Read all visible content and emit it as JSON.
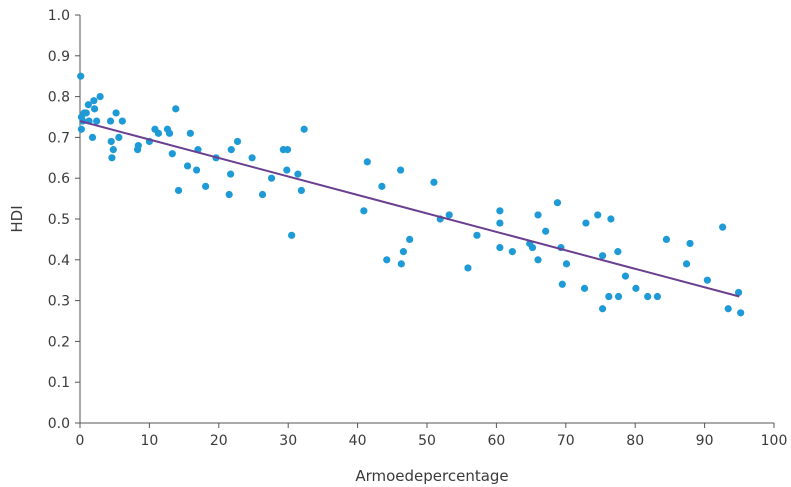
{
  "chart_data": {
    "type": "scatter",
    "xlabel": "Armoedepercentage",
    "ylabel": "HDI",
    "xlim": [
      0,
      100
    ],
    "ylim": [
      0.0,
      1.0
    ],
    "x_ticks": [
      "0",
      "10",
      "20",
      "30",
      "40",
      "50",
      "60",
      "70",
      "80",
      "90",
      "100"
    ],
    "y_ticks": [
      "0.0",
      "0.1",
      "0.2",
      "0.3",
      "0.4",
      "0.5",
      "0.6",
      "0.7",
      "0.8",
      "0.9",
      "1.0"
    ],
    "grid": false,
    "legend": "none",
    "point_color": "#1e9ad6",
    "trend_color": "#6a3f8f",
    "trendline": {
      "x": [
        0,
        95
      ],
      "y": [
        0.74,
        0.31
      ]
    },
    "series": [
      {
        "points": [
          [
            0.1,
            0.85
          ],
          [
            0.2,
            0.72
          ],
          [
            0.2,
            0.75
          ],
          [
            0.4,
            0.74
          ],
          [
            0.6,
            0.76
          ],
          [
            0.9,
            0.76
          ],
          [
            1.2,
            0.78
          ],
          [
            1.3,
            0.74
          ],
          [
            1.8,
            0.7
          ],
          [
            2.0,
            0.79
          ],
          [
            2.1,
            0.77
          ],
          [
            2.4,
            0.74
          ],
          [
            2.9,
            0.8
          ],
          [
            4.4,
            0.74
          ],
          [
            4.5,
            0.69
          ],
          [
            4.6,
            0.65
          ],
          [
            4.8,
            0.67
          ],
          [
            5.2,
            0.76
          ],
          [
            5.6,
            0.7
          ],
          [
            6.1,
            0.74
          ],
          [
            8.3,
            0.67
          ],
          [
            8.4,
            0.68
          ],
          [
            10.0,
            0.69
          ],
          [
            10.8,
            0.72
          ],
          [
            11.3,
            0.71
          ],
          [
            12.6,
            0.72
          ],
          [
            12.9,
            0.71
          ],
          [
            13.3,
            0.66
          ],
          [
            13.8,
            0.77
          ],
          [
            14.2,
            0.57
          ],
          [
            15.5,
            0.63
          ],
          [
            15.9,
            0.71
          ],
          [
            16.8,
            0.62
          ],
          [
            17.0,
            0.67
          ],
          [
            18.1,
            0.58
          ],
          [
            19.6,
            0.65
          ],
          [
            21.5,
            0.56
          ],
          [
            21.7,
            0.61
          ],
          [
            21.8,
            0.67
          ],
          [
            22.7,
            0.69
          ],
          [
            24.8,
            0.65
          ],
          [
            26.3,
            0.56
          ],
          [
            27.6,
            0.6
          ],
          [
            29.3,
            0.67
          ],
          [
            29.8,
            0.62
          ],
          [
            29.9,
            0.67
          ],
          [
            30.5,
            0.46
          ],
          [
            31.4,
            0.61
          ],
          [
            31.9,
            0.57
          ],
          [
            32.3,
            0.72
          ],
          [
            40.9,
            0.52
          ],
          [
            41.4,
            0.64
          ],
          [
            43.5,
            0.58
          ],
          [
            44.2,
            0.4
          ],
          [
            46.2,
            0.62
          ],
          [
            46.3,
            0.39
          ],
          [
            46.6,
            0.42
          ],
          [
            47.5,
            0.45
          ],
          [
            51.0,
            0.59
          ],
          [
            51.9,
            0.5
          ],
          [
            53.2,
            0.51
          ],
          [
            55.9,
            0.38
          ],
          [
            57.2,
            0.46
          ],
          [
            60.5,
            0.52
          ],
          [
            60.5,
            0.49
          ],
          [
            60.5,
            0.43
          ],
          [
            62.3,
            0.42
          ],
          [
            64.8,
            0.44
          ],
          [
            65.2,
            0.43
          ],
          [
            66.0,
            0.51
          ],
          [
            66.0,
            0.4
          ],
          [
            67.1,
            0.47
          ],
          [
            68.8,
            0.54
          ],
          [
            69.3,
            0.43
          ],
          [
            69.5,
            0.34
          ],
          [
            70.1,
            0.39
          ],
          [
            72.7,
            0.33
          ],
          [
            72.9,
            0.49
          ],
          [
            74.6,
            0.51
          ],
          [
            75.3,
            0.41
          ],
          [
            75.3,
            0.28
          ],
          [
            76.2,
            0.31
          ],
          [
            76.5,
            0.5
          ],
          [
            77.5,
            0.42
          ],
          [
            77.6,
            0.31
          ],
          [
            78.6,
            0.36
          ],
          [
            80.1,
            0.33
          ],
          [
            81.8,
            0.31
          ],
          [
            83.2,
            0.31
          ],
          [
            84.5,
            0.45
          ],
          [
            87.4,
            0.39
          ],
          [
            87.9,
            0.44
          ],
          [
            90.4,
            0.35
          ],
          [
            92.6,
            0.48
          ],
          [
            93.4,
            0.28
          ],
          [
            94.9,
            0.32
          ],
          [
            95.2,
            0.27
          ]
        ]
      }
    ]
  }
}
